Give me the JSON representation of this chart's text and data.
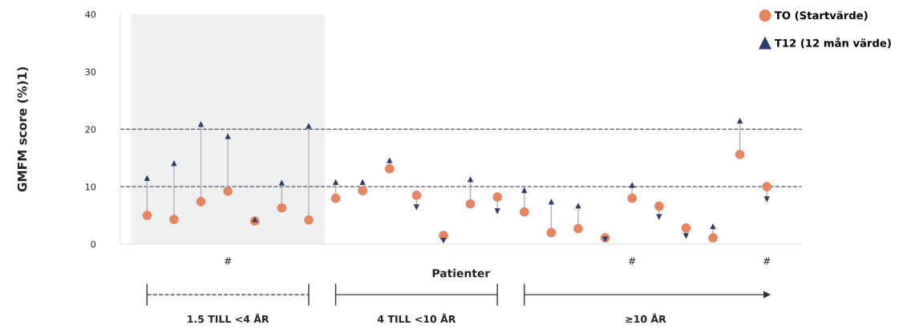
{
  "chart_data": {
    "type": "scatter",
    "ylabel": "GMFM score (%)1)",
    "xlabel": "Patienter",
    "categories": [
      null,
      null,
      null,
      "#",
      null,
      null,
      null,
      null,
      null,
      null,
      null,
      null,
      null,
      null,
      null,
      null,
      null,
      null,
      "#",
      null,
      null,
      null,
      null,
      "#"
    ],
    "ylim": [
      0,
      40
    ],
    "yticks": [
      0,
      10,
      20,
      30,
      40
    ],
    "series": [
      {
        "name": "TO (Startvärde)",
        "color": "#e8845f",
        "marker": "circle",
        "values": [
          5.0,
          4.3,
          7.4,
          9.2,
          4.0,
          6.3,
          4.2,
          8.0,
          9.3,
          13.1,
          8.5,
          1.5,
          7.0,
          8.2,
          5.6,
          2.0,
          2.7,
          1.1,
          8.0,
          6.6,
          2.8,
          1.1,
          15.6,
          10.0
        ]
      },
      {
        "name": "T12 (12 mån värde)",
        "color": "#2e3f6e",
        "marker": "triangle",
        "values": [
          11.5,
          14.1,
          20.9,
          18.8,
          4.3,
          10.7,
          20.6,
          10.8,
          10.8,
          14.6,
          6.4,
          0.6,
          11.3,
          5.7,
          9.4,
          7.4,
          6.7,
          0.8,
          10.3,
          4.7,
          1.4,
          3.1,
          21.5,
          7.8
        ]
      }
    ],
    "ref_lines": [
      {
        "axis": "y",
        "value": 10,
        "color": "#4a5560",
        "line_style": "dashed"
      },
      {
        "axis": "y",
        "value": 20,
        "color": "#4a5560",
        "line_style": "dashed"
      }
    ],
    "annotations": [
      "1.5 TILL <4 ÅR",
      "4 TILL <10 ÅR",
      "≥10 ÅR"
    ],
    "legend": "top right",
    "grid": false
  }
}
